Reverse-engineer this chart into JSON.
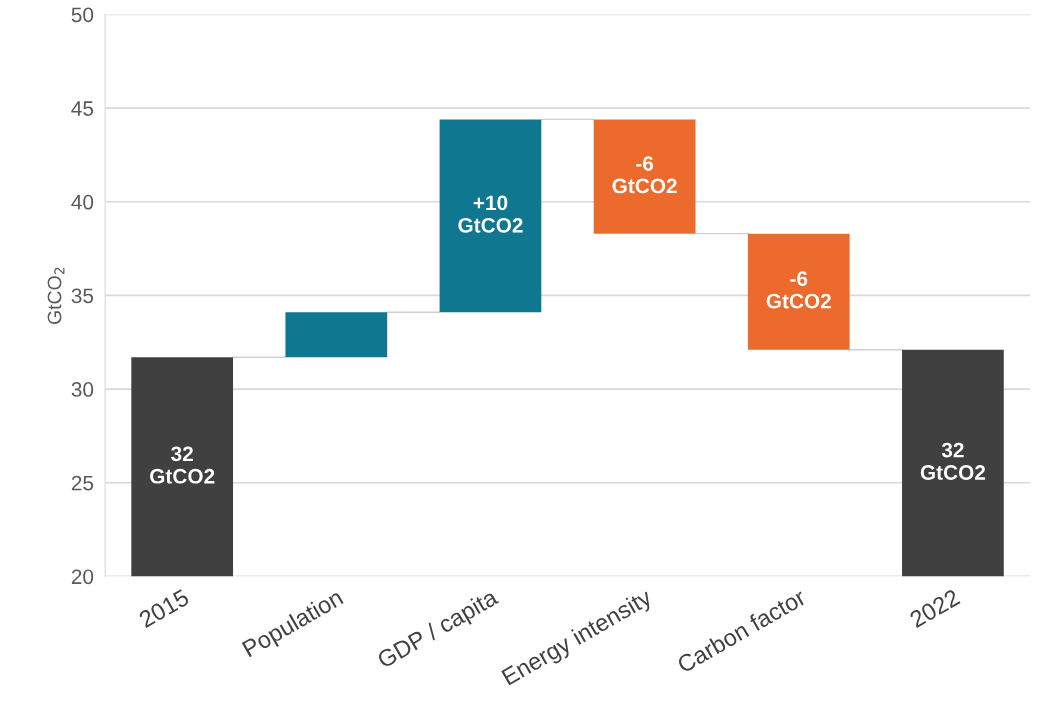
{
  "chart_data": {
    "type": "bar",
    "ylabel": "GtCO$_{2}$",
    "categories": [
      "2015",
      "Population",
      "GDP / capita",
      "Energy intensity",
      "Carbon factor",
      "2022"
    ],
    "values": [
      31.7,
      2.4,
      10.3,
      -6.1,
      -6.2,
      32.1
    ],
    "base": [
      0,
      31.7,
      34.1,
      44.4,
      38.3,
      0
    ],
    "colors": [
      "#404040",
      "#0f7790",
      "#0f7790",
      "#ec6a2b",
      "#ec6a2b",
      "#404040"
    ],
    "value_labels": [
      "32\nGtCO2",
      null,
      "+10\nGtCO2",
      "-6\nGtCO2",
      "-6\nGtCO2",
      "32\nGtCO2"
    ],
    "ylim": [
      20,
      50
    ],
    "yticks": [
      20,
      25,
      30,
      35,
      40,
      45,
      50
    ],
    "grid": "y"
  }
}
